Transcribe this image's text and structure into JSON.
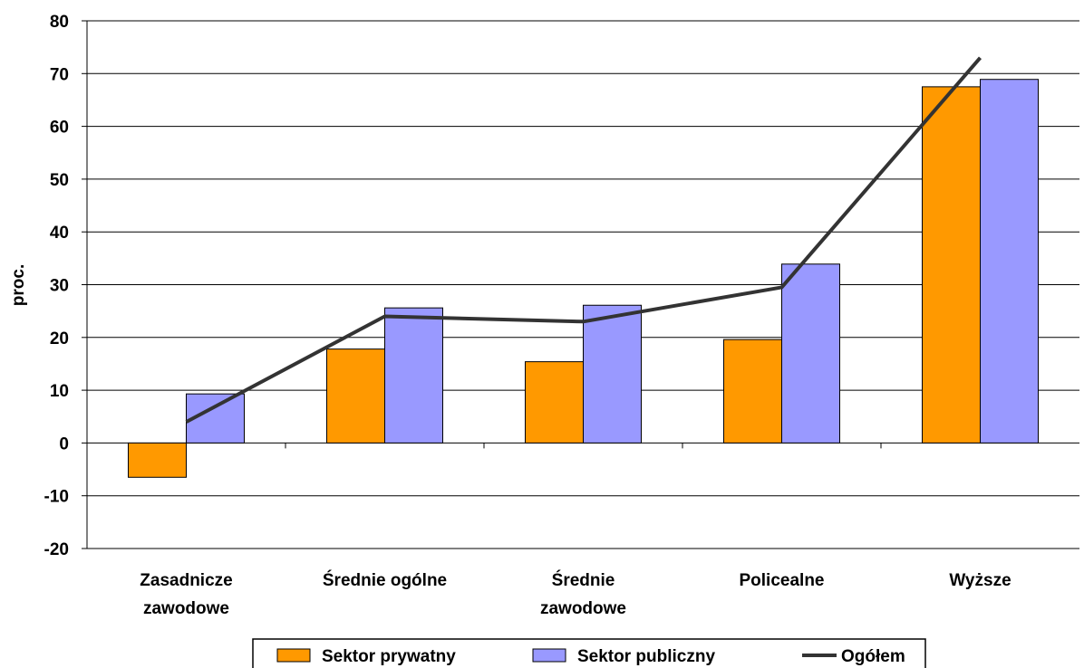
{
  "chart_data": {
    "type": "bar",
    "categories": [
      [
        "Zasadnicze",
        "zawodowe"
      ],
      [
        "Średnie ogólne"
      ],
      [
        "Średnie",
        "zawodowe"
      ],
      [
        "Policealne"
      ],
      [
        "Wyższe"
      ]
    ],
    "series": [
      {
        "name": "Sektor prywatny",
        "kind": "bar",
        "color": "#FF9900",
        "values": [
          -6.5,
          17.8,
          15.4,
          19.6,
          67.5
        ]
      },
      {
        "name": "Sektor publiczny",
        "kind": "bar",
        "color": "#9999FF",
        "values": [
          9.3,
          25.6,
          26.1,
          33.9,
          68.9
        ]
      },
      {
        "name": "Ogółem",
        "kind": "line",
        "color": "#333333",
        "values": [
          4.0,
          24.0,
          23.0,
          29.5,
          73.0
        ]
      }
    ],
    "ylabel": "proc.",
    "xlabel": "",
    "title": "",
    "ylim": [
      -20,
      80
    ],
    "yticks": [
      -20,
      -10,
      0,
      10,
      20,
      30,
      40,
      50,
      60,
      70,
      80
    ],
    "grid": true,
    "legend": "bottom"
  }
}
